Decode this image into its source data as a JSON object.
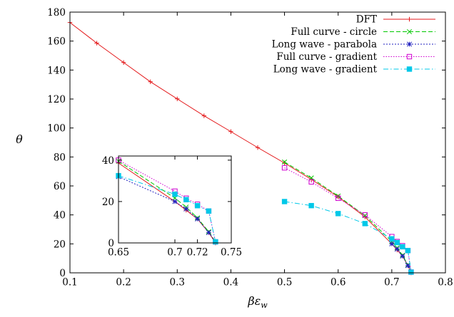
{
  "chart_data": [
    {
      "type": "line",
      "xlabel": "βε",
      "xlabel_sub": "w",
      "ylabel": "θ",
      "xlim": [
        0.1,
        0.8
      ],
      "ylim": [
        0,
        180
      ],
      "xticks": [
        0.1,
        0.2,
        0.3,
        0.4,
        0.5,
        0.6,
        0.7,
        0.8
      ],
      "xtick_labels": [
        "0.1",
        "0.2",
        "0.3",
        "0.4",
        "0.5",
        "0.6",
        "0.7",
        "0.8"
      ],
      "yticks": [
        0,
        20,
        40,
        60,
        80,
        100,
        120,
        140,
        160,
        180
      ],
      "ytick_labels": [
        "0",
        "20",
        "40",
        "60",
        "80",
        "100",
        "120",
        "140",
        "160",
        "180"
      ],
      "grid": false,
      "legend_position": "top-right",
      "series": [
        {
          "name": "DFT",
          "color": "#e41a1c",
          "dash": "solid",
          "marker": "plus",
          "x": [
            0.1,
            0.15,
            0.2,
            0.25,
            0.3,
            0.35,
            0.4,
            0.45,
            0.5,
            0.55,
            0.6,
            0.65,
            0.7,
            0.71,
            0.72,
            0.73,
            0.736
          ],
          "y": [
            172.8,
            158.6,
            145.2,
            131.9,
            120.1,
            108.4,
            97.5,
            86.5,
            75.8,
            64.5,
            52.5,
            38.6,
            20.0,
            15.8,
            11.6,
            5.0,
            0
          ]
        },
        {
          "name": "Full curve - circle",
          "color": "#00c800",
          "dash": "6,3",
          "marker": "x",
          "x": [
            0.5,
            0.55,
            0.6,
            0.65,
            0.7,
            0.71,
            0.72,
            0.73,
            0.736
          ],
          "y": [
            76.5,
            65.5,
            53.0,
            39.5,
            21.7,
            17.3,
            12.1,
            5.4,
            0.5
          ]
        },
        {
          "name": "Long wave - parabola",
          "color": "#1f1fbf",
          "dash": "2,2",
          "marker": "star",
          "x": [
            0.7,
            0.71,
            0.72,
            0.73,
            0.736
          ],
          "y": [
            20.0,
            16.4,
            11.6,
            5.0,
            0.5
          ]
        },
        {
          "name": "Full curve - gradient",
          "color": "#d000d0",
          "dash": "1.5,2",
          "marker": "open-square",
          "x": [
            0.5,
            0.55,
            0.6,
            0.65,
            0.7,
            0.71,
            0.72,
            0.73,
            0.736
          ],
          "y": [
            72.5,
            62.8,
            51.5,
            40.0,
            25.0,
            21.6,
            18.7,
            15.4,
            0.5
          ]
        },
        {
          "name": "Long wave - gradient",
          "color": "#00c8e8",
          "dash": "7,3,1.5,3",
          "marker": "filled-square",
          "x": [
            0.5,
            0.55,
            0.6,
            0.65,
            0.7,
            0.71,
            0.72,
            0.73,
            0.736
          ],
          "y": [
            49.2,
            46.4,
            40.9,
            34.0,
            23.5,
            20.9,
            18.0,
            15.4,
            0.5
          ]
        }
      ]
    },
    {
      "type": "line",
      "role": "inset",
      "xlim": [
        0.65,
        0.75
      ],
      "ylim": [
        0,
        42
      ],
      "xticks": [
        0.65,
        0.7,
        0.72,
        0.75
      ],
      "xtick_labels": [
        "0.65",
        "0.7",
        "0.72",
        "0.75"
      ],
      "yticks": [
        0,
        20,
        40
      ],
      "ytick_labels": [
        "0",
        "20",
        "40"
      ],
      "grid": false,
      "series": [
        {
          "name": "DFT",
          "color": "#e41a1c",
          "dash": "solid",
          "marker": "plus",
          "x": [
            0.65,
            0.7,
            0.71,
            0.72,
            0.73,
            0.736
          ],
          "y": [
            38.6,
            20.0,
            15.8,
            11.6,
            5.0,
            0
          ]
        },
        {
          "name": "Full curve - circle",
          "color": "#00c800",
          "dash": "6,3",
          "marker": "x",
          "x": [
            0.65,
            0.7,
            0.71,
            0.72,
            0.73,
            0.736
          ],
          "y": [
            39.5,
            21.7,
            17.3,
            12.1,
            5.4,
            0.5
          ]
        },
        {
          "name": "Long wave - parabola",
          "color": "#1f1fbf",
          "dash": "2,2",
          "marker": "star",
          "x": [
            0.65,
            0.7,
            0.71,
            0.72,
            0.73,
            0.736
          ],
          "y": [
            32.0,
            20.0,
            16.4,
            11.6,
            5.0,
            0.5
          ]
        },
        {
          "name": "Full curve - gradient",
          "color": "#d000d0",
          "dash": "1.5,2",
          "marker": "open-square",
          "x": [
            0.65,
            0.7,
            0.71,
            0.72,
            0.73,
            0.736
          ],
          "y": [
            40.0,
            25.0,
            21.6,
            18.7,
            15.4,
            0.5
          ]
        },
        {
          "name": "Long wave - gradient",
          "color": "#00c8e8",
          "dash": "7,3,1.5,3",
          "marker": "filled-square",
          "x": [
            0.65,
            0.7,
            0.71,
            0.72,
            0.73,
            0.736
          ],
          "y": [
            32.5,
            23.5,
            20.9,
            18.0,
            15.4,
            0.5
          ]
        }
      ]
    }
  ]
}
